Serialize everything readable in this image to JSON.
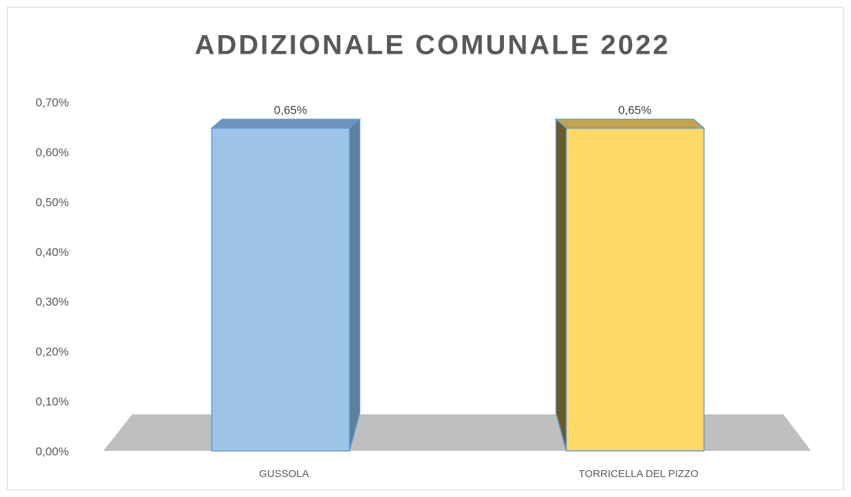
{
  "chart_data": {
    "type": "bar3d",
    "title": "ADDIZIONALE COMUNALE 2022",
    "categories": [
      "GUSSOLA",
      "TORRICELLA DEL PIZZO"
    ],
    "values": [
      0.65,
      0.65
    ],
    "value_labels": [
      "0,65%",
      "0,65%"
    ],
    "colors": [
      "#9dc3e6",
      "#ffd966"
    ],
    "side_colors": [
      "#5f7f9f",
      "#6b5a28"
    ],
    "top_colors": [
      "#6f93b8",
      "#c4a44a"
    ],
    "ylim": [
      0,
      0.7
    ],
    "yticks": [
      {
        "value": 0,
        "label": "0,00%"
      },
      {
        "value": 0.1,
        "label": "0,10%"
      },
      {
        "value": 0.2,
        "label": "0,20%"
      },
      {
        "value": 0.3,
        "label": "0,30%"
      },
      {
        "value": 0.4,
        "label": "0,40%"
      },
      {
        "value": 0.5,
        "label": "0,50%"
      },
      {
        "value": 0.6,
        "label": "0,60%"
      },
      {
        "value": 0.7,
        "label": "0,70%"
      }
    ],
    "grid": false
  }
}
